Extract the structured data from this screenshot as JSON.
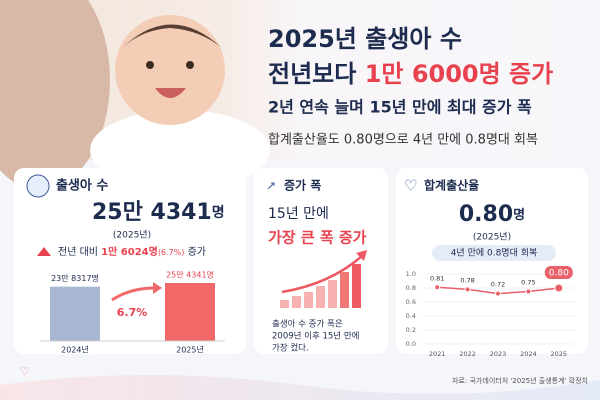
{
  "header": {
    "title_line1": "2025년 출생아 수",
    "title_line2_a": "전년보다 ",
    "title_line2_b": "1만 6000명 증가",
    "subtitle": "2년 연속 늘며 15년 만에 최대 증가 폭",
    "detail": "합계출산율도 0.80명으로 4년 만에 0.8명대 회복"
  },
  "cards": [
    {
      "title": "출생아 수",
      "big": "25만 4341",
      "unit": "명",
      "year": "(2025년)",
      "change_a": "전년 대비 ",
      "change_b": "1만 6024명",
      "change_c": "(6.7%)",
      "change_d": " 증가"
    },
    {
      "title": "증가 폭",
      "line1": "15년 만에",
      "line2": "가장 큰 폭 증가",
      "note": [
        "출생아 수 증가 폭은",
        "2009년 이후 15년 만에",
        "가장 컸다."
      ]
    },
    {
      "title": "합계출산율",
      "big": "0.80",
      "unit": "명",
      "year": "(2025년)",
      "badge": "4년 만에 0.8명대 회복"
    }
  ],
  "chart_data": [
    {
      "type": "bar",
      "categories": [
        "2024년",
        "2025년"
      ],
      "values": [
        238317,
        254341
      ],
      "value_labels": [
        "23만 8317명",
        "25만 4341명"
      ],
      "colors": [
        "#a9b8d2",
        "#f26868"
      ],
      "annotation": "6.7%"
    },
    {
      "type": "line",
      "categories": [
        "2021",
        "2022",
        "2023",
        "2024",
        "2025"
      ],
      "values": [
        0.81,
        0.78,
        0.72,
        0.75,
        0.8
      ],
      "value_labels": [
        "0.81",
        "0.78",
        "0.72",
        "0.75",
        "0.80"
      ],
      "color": "#e8606a",
      "ylim": [
        0,
        1
      ],
      "yticks": [
        {
          "value": 0,
          "label": "0.0"
        },
        0.2,
        0.4,
        0.6,
        0.8,
        {
          "value": 1,
          "label": "1.0"
        }
      ],
      "grid": true
    }
  ],
  "source": "자료: 국가데이터처 '2025년 출생통계' 확정치"
}
